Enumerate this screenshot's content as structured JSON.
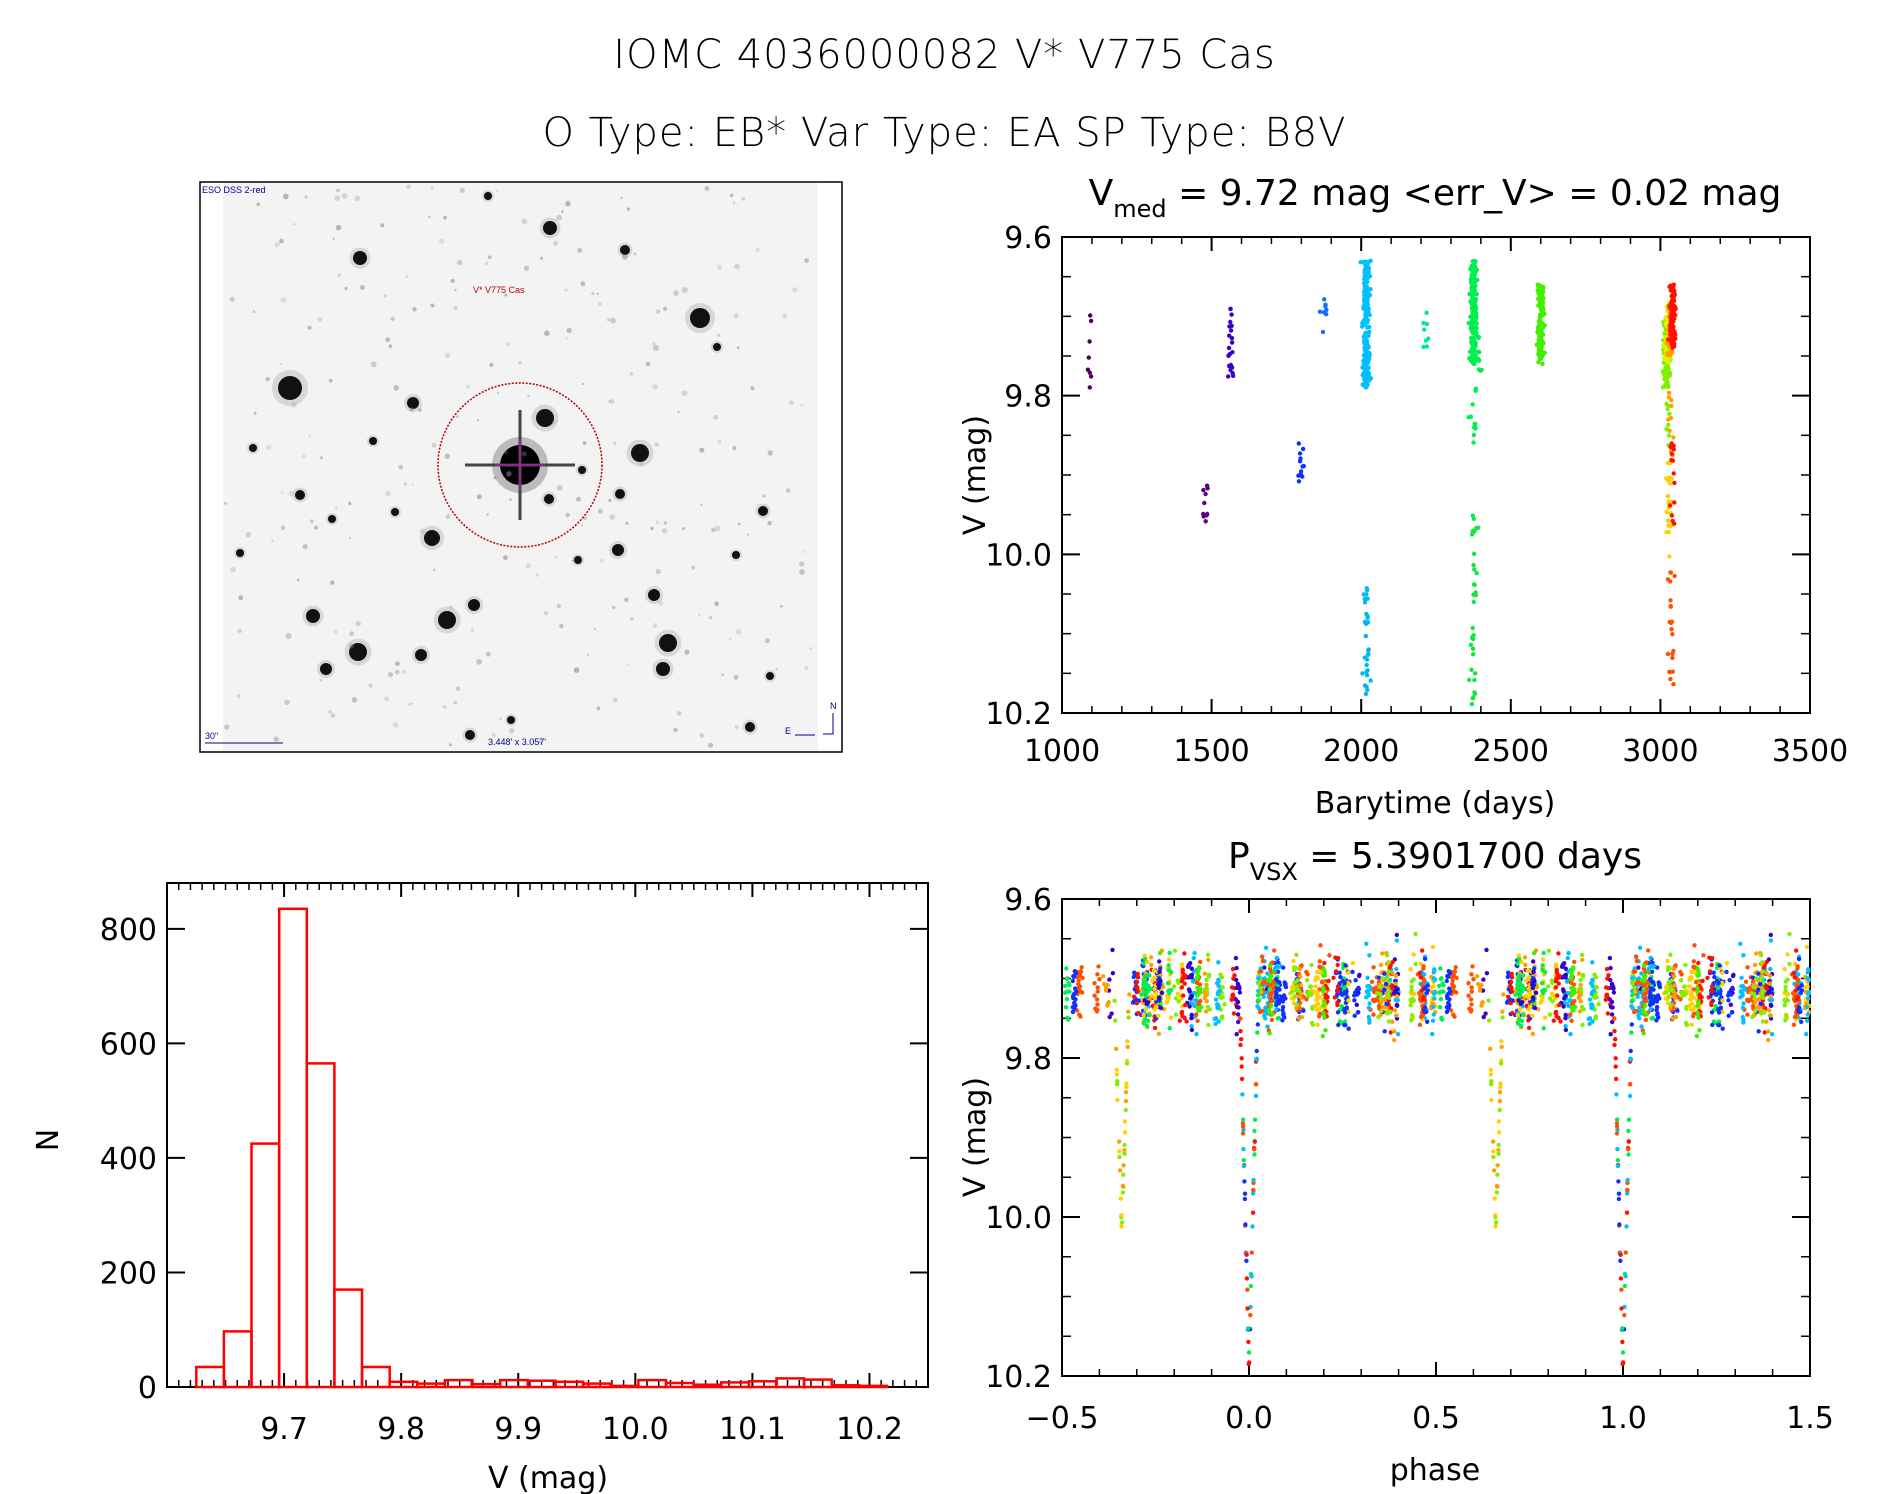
{
  "header": {
    "line1": "IOMC 4036000082    V* V775 Cas",
    "line2": "O Type: EB*  Var Type: EA  SP Type: B8V"
  },
  "sky_image": {
    "survey_label": "ESO DSS 2-red",
    "target_label": "V* V775 Cas",
    "scale_label": "30\"",
    "field_label": "3.448' x 3.057'",
    "north_label": "N",
    "east_label": "E",
    "label_color": "#00008b",
    "target_color": "#c00000"
  },
  "chart_data": [
    {
      "id": "lightcurve",
      "type": "scatter",
      "title_main": "V",
      "title_sub": "med",
      "title_rest": " = 9.72 mag <err_V> = 0.02 mag",
      "xlabel": "Barytime (days)",
      "ylabel": "V (mag)",
      "xlim": [
        1000,
        3500
      ],
      "ylim": [
        10.2,
        9.6
      ],
      "y_inverted": true,
      "xticks": [
        "1000",
        "1500",
        "2000",
        "2500",
        "3000",
        "3500"
      ],
      "xtick_values": [
        1000,
        1500,
        2000,
        2500,
        3000,
        3500
      ],
      "yticks": [
        "9.6",
        "9.8",
        "10.0",
        "10.2"
      ],
      "ytick_values": [
        9.6,
        9.8,
        10.0,
        10.2
      ],
      "color_scale": "rainbow by time",
      "clusters": [
        {
          "x": 1095,
          "ymin": 9.68,
          "ymax": 9.79,
          "n": 8,
          "color": "#4b0055"
        },
        {
          "x": 1480,
          "ymin": 9.9,
          "ymax": 9.96,
          "n": 10,
          "color": "#5a0080"
        },
        {
          "x": 1565,
          "ymin": 9.69,
          "ymax": 9.78,
          "n": 22,
          "color": "#3a00c8"
        },
        {
          "x": 1800,
          "ymin": 9.86,
          "ymax": 9.92,
          "n": 12,
          "color": "#1030ff"
        },
        {
          "x": 1875,
          "ymin": 9.67,
          "ymax": 9.74,
          "n": 8,
          "color": "#1070ff"
        },
        {
          "x": 2017,
          "ymin": 9.63,
          "ymax": 9.79,
          "n": 220,
          "color": "#00c0ff"
        },
        {
          "x": 2017,
          "ymin": 10.04,
          "ymax": 10.18,
          "n": 30,
          "color": "#00b8f0"
        },
        {
          "x": 2215,
          "ymin": 9.69,
          "ymax": 9.74,
          "n": 8,
          "color": "#00e8a0"
        },
        {
          "x": 2375,
          "ymin": 9.63,
          "ymax": 9.76,
          "n": 200,
          "color": "#00ee50"
        },
        {
          "x": 2375,
          "ymin": 9.78,
          "ymax": 9.86,
          "n": 12,
          "color": "#00ee50"
        },
        {
          "x": 2375,
          "ymin": 9.94,
          "ymax": 10.19,
          "n": 35,
          "color": "#10e840"
        },
        {
          "x": 2395,
          "ymin": 9.72,
          "ymax": 9.77,
          "n": 10,
          "color": "#00ee50"
        },
        {
          "x": 2600,
          "ymin": 9.66,
          "ymax": 9.76,
          "n": 140,
          "color": "#40f000"
        },
        {
          "x": 3020,
          "ymin": 9.7,
          "ymax": 9.79,
          "n": 100,
          "color": "#80f000"
        },
        {
          "x": 3025,
          "ymin": 9.68,
          "ymax": 9.76,
          "n": 80,
          "color": "#e0f000"
        },
        {
          "x": 3033,
          "ymin": 9.69,
          "ymax": 9.75,
          "n": 60,
          "color": "#ffa000"
        },
        {
          "x": 3040,
          "ymin": 9.66,
          "ymax": 9.74,
          "n": 90,
          "color": "#ff1000"
        },
        {
          "x": 3022,
          "ymin": 9.8,
          "ymax": 9.87,
          "n": 10,
          "color": "#80f000"
        },
        {
          "x": 3028,
          "ymin": 9.88,
          "ymax": 10.02,
          "n": 22,
          "color": "#ffd000"
        },
        {
          "x": 3035,
          "ymin": 9.79,
          "ymax": 9.88,
          "n": 10,
          "color": "#ffa000"
        },
        {
          "x": 3040,
          "ymin": 9.86,
          "ymax": 9.97,
          "n": 14,
          "color": "#ff1000"
        },
        {
          "x": 3036,
          "ymin": 10.01,
          "ymax": 10.17,
          "n": 22,
          "color": "#ff5000"
        }
      ]
    },
    {
      "id": "histogram",
      "type": "bar",
      "title": "",
      "xlabel": "V (mag)",
      "ylabel": "N",
      "xlim": [
        9.6,
        10.25
      ],
      "ylim": [
        0,
        880
      ],
      "xticks": [
        "9.7",
        "9.8",
        "9.9",
        "10.0",
        "10.1",
        "10.2"
      ],
      "xtick_values": [
        9.7,
        9.8,
        9.9,
        10.0,
        10.1,
        10.2
      ],
      "yticks": [
        "0",
        "200",
        "400",
        "600",
        "800"
      ],
      "ytick_values": [
        0,
        200,
        400,
        600,
        800
      ],
      "bar_color": "#ff0000",
      "bin_start": 9.625,
      "bin_width": 0.0236,
      "values": [
        35,
        97,
        425,
        835,
        565,
        170,
        35,
        9,
        6,
        12,
        5,
        12,
        11,
        9,
        6,
        2,
        12,
        7,
        4,
        8,
        10,
        15,
        13,
        3,
        2
      ]
    },
    {
      "id": "phase",
      "type": "scatter",
      "title_main": "P",
      "title_sub": "VSX",
      "title_rest": " = 5.3901700 days",
      "xlabel": "phase",
      "ylabel": "V (mag)",
      "xlim": [
        -0.5,
        1.5
      ],
      "ylim": [
        10.2,
        9.6
      ],
      "y_inverted": true,
      "xticks": [
        "−0.5",
        "0.0",
        "0.5",
        "1.0",
        "1.5"
      ],
      "xtick_values": [
        -0.5,
        0.0,
        0.5,
        1.0,
        1.5
      ],
      "yticks": [
        "9.6",
        "9.8",
        "10.0",
        "10.2"
      ],
      "ytick_values": [
        9.6,
        9.8,
        10.0,
        10.2
      ],
      "period_days": 5.39017,
      "features": {
        "baseline_mag": 9.715,
        "baseline_scatter": 0.035,
        "primary_eclipse_phase": 0.0,
        "primary_eclipse_depth_mag": 10.19,
        "secondary_eclipse_phase": -0.34,
        "secondary_eclipse_depth_mag": 10.02
      },
      "palette": [
        "#00c0ff",
        "#00ee50",
        "#40f000",
        "#80f000",
        "#ff1000",
        "#ffa000",
        "#ffd000",
        "#1030ff",
        "#3a00c8",
        "#ff5000"
      ]
    }
  ]
}
